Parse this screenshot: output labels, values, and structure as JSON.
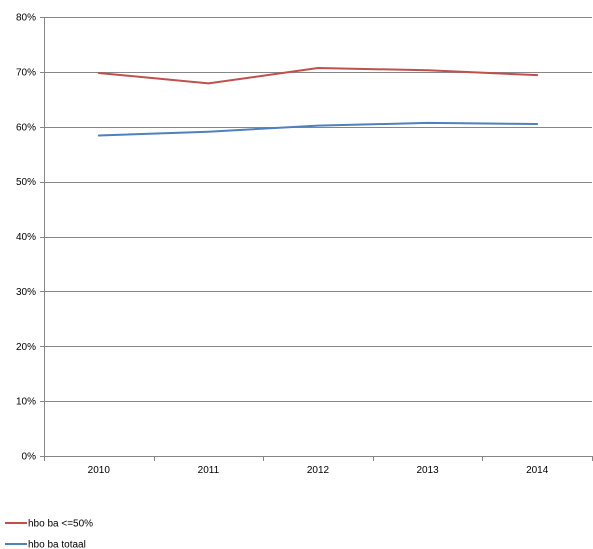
{
  "chart_data": {
    "type": "line",
    "categories": [
      "2010",
      "2011",
      "2012",
      "2013",
      "2014"
    ],
    "series": [
      {
        "name": "hbo ba <=50%",
        "values": [
          0.698,
          0.679,
          0.707,
          0.703,
          0.694
        ],
        "color": "#c0504d"
      },
      {
        "name": "hbo ba totaal",
        "values": [
          0.584,
          0.591,
          0.602,
          0.607,
          0.605
        ],
        "color": "#4f81bd"
      }
    ],
    "ylim": [
      0,
      0.8
    ],
    "yticks": [
      0,
      0.1,
      0.2,
      0.3,
      0.4,
      0.5,
      0.6,
      0.7,
      0.8
    ],
    "ytick_labels": [
      "0%",
      "10%",
      "20%",
      "30%",
      "40%",
      "50%",
      "60%",
      "70%",
      "80%"
    ],
    "grid": true,
    "legend_position": "bottom-left",
    "gridline_color": "#868686"
  }
}
